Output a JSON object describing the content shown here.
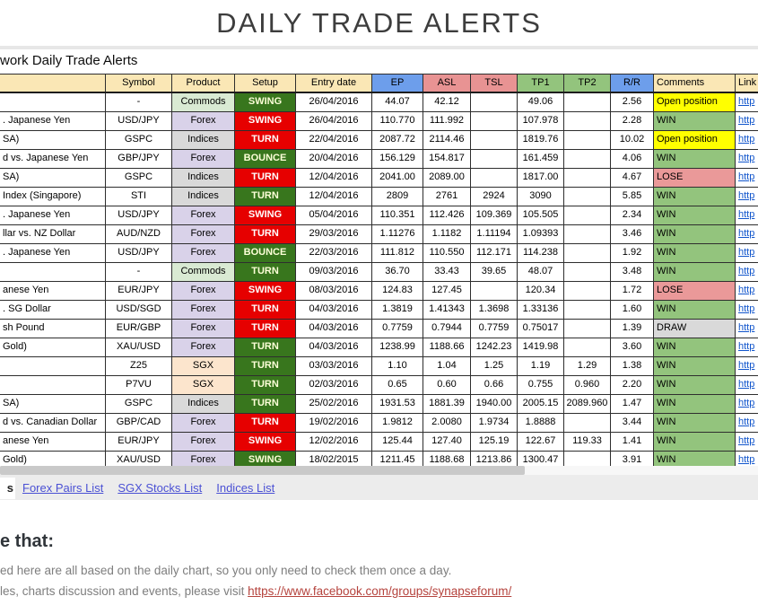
{
  "page": {
    "title": "DAILY TRADE ALERTS",
    "sheet_caption": "work Daily Trade Alerts"
  },
  "table": {
    "headers": {
      "name": "",
      "symbol": "Symbol",
      "product": "Product",
      "setup": "Setup",
      "entry": "Entry date",
      "ep": "EP",
      "asl": "ASL",
      "tsl": "TSL",
      "tp1": "TP1",
      "tp2": "TP2",
      "rr": "R/R",
      "comments": "Comments",
      "link": "Link"
    },
    "rows": [
      {
        "name": "",
        "symbol": "-",
        "product": "Commods",
        "setup": "SWING",
        "setup_color": "green",
        "entry": "26/04/2016",
        "ep": "44.07",
        "asl": "42.12",
        "tsl": "",
        "tp1": "49.06",
        "tp2": "",
        "rr": "2.56",
        "comment": "Open position",
        "link": "http"
      },
      {
        "name": ". Japanese Yen",
        "symbol": "USD/JPY",
        "product": "Forex",
        "setup": "SWING",
        "setup_color": "red",
        "entry": "26/04/2016",
        "ep": "110.770",
        "asl": "111.992",
        "tsl": "",
        "tp1": "107.978",
        "tp2": "",
        "rr": "2.28",
        "comment": "WIN",
        "link": "http"
      },
      {
        "name": "SA)",
        "symbol": "GSPC",
        "product": "Indices",
        "setup": "TURN",
        "setup_color": "red",
        "entry": "22/04/2016",
        "ep": "2087.72",
        "asl": "2114.46",
        "tsl": "",
        "tp1": "1819.76",
        "tp2": "",
        "rr": "10.02",
        "comment": "Open position",
        "link": "http"
      },
      {
        "name": "d vs. Japanese Yen",
        "symbol": "GBP/JPY",
        "product": "Forex",
        "setup": "BOUNCE",
        "setup_color": "green",
        "entry": "20/04/2016",
        "ep": "156.129",
        "asl": "154.817",
        "tsl": "",
        "tp1": "161.459",
        "tp2": "",
        "rr": "4.06",
        "comment": "WIN",
        "link": "http"
      },
      {
        "name": "SA)",
        "symbol": "GSPC",
        "product": "Indices",
        "setup": "TURN",
        "setup_color": "red",
        "entry": "12/04/2016",
        "ep": "2041.00",
        "asl": "2089.00",
        "tsl": "",
        "tp1": "1817.00",
        "tp2": "",
        "rr": "4.67",
        "comment": "LOSE",
        "link": "http"
      },
      {
        "name": "Index (Singapore)",
        "symbol": "STI",
        "product": "Indices",
        "setup": "TURN",
        "setup_color": "green",
        "entry": "12/04/2016",
        "ep": "2809",
        "asl": "2761",
        "tsl": "2924",
        "tp1": "3090",
        "tp2": "",
        "rr": "5.85",
        "comment": "WIN",
        "link": "http"
      },
      {
        "name": ". Japanese Yen",
        "symbol": "USD/JPY",
        "product": "Forex",
        "setup": "SWING",
        "setup_color": "red",
        "entry": "05/04/2016",
        "ep": "110.351",
        "asl": "112.426",
        "tsl": "109.369",
        "tp1": "105.505",
        "tp2": "",
        "rr": "2.34",
        "comment": "WIN",
        "link": "http"
      },
      {
        "name": "llar vs. NZ Dollar",
        "symbol": "AUD/NZD",
        "product": "Forex",
        "setup": "TURN",
        "setup_color": "red",
        "entry": "29/03/2016",
        "ep": "1.11276",
        "asl": "1.1182",
        "tsl": "1.11194",
        "tp1": "1.09393",
        "tp2": "",
        "rr": "3.46",
        "comment": "WIN",
        "link": "http"
      },
      {
        "name": ". Japanese Yen",
        "symbol": "USD/JPY",
        "product": "Forex",
        "setup": "BOUNCE",
        "setup_color": "green",
        "entry": "22/03/2016",
        "ep": "111.812",
        "asl": "110.550",
        "tsl": "112.171",
        "tp1": "114.238",
        "tp2": "",
        "rr": "1.92",
        "comment": "WIN",
        "link": "http"
      },
      {
        "name": "",
        "symbol": "-",
        "product": "Commods",
        "setup": "TURN",
        "setup_color": "green",
        "entry": "09/03/2016",
        "ep": "36.70",
        "asl": "33.43",
        "tsl": "39.65",
        "tp1": "48.07",
        "tp2": "",
        "rr": "3.48",
        "comment": "WIN",
        "link": "http"
      },
      {
        "name": "anese Yen",
        "symbol": "EUR/JPY",
        "product": "Forex",
        "setup": "SWING",
        "setup_color": "red",
        "entry": "08/03/2016",
        "ep": "124.83",
        "asl": "127.45",
        "tsl": "",
        "tp1": "120.34",
        "tp2": "",
        "rr": "1.72",
        "comment": "LOSE",
        "link": "http"
      },
      {
        "name": ". SG Dollar",
        "symbol": "USD/SGD",
        "product": "Forex",
        "setup": "TURN",
        "setup_color": "red",
        "entry": "04/03/2016",
        "ep": "1.3819",
        "asl": "1.41343",
        "tsl": "1.3698",
        "tp1": "1.33136",
        "tp2": "",
        "rr": "1.60",
        "comment": "WIN",
        "link": "http"
      },
      {
        "name": "sh Pound",
        "symbol": "EUR/GBP",
        "product": "Forex",
        "setup": "TURN",
        "setup_color": "red",
        "entry": "04/03/2016",
        "ep": "0.7759",
        "asl": "0.7944",
        "tsl": "0.7759",
        "tp1": "0.75017",
        "tp2": "",
        "rr": "1.39",
        "comment": "DRAW",
        "link": "http"
      },
      {
        "name": "Gold)",
        "symbol": "XAU/USD",
        "product": "Forex",
        "setup": "TURN",
        "setup_color": "green",
        "entry": "04/03/2016",
        "ep": "1238.99",
        "asl": "1188.66",
        "tsl": "1242.23",
        "tp1": "1419.98",
        "tp2": "",
        "rr": "3.60",
        "comment": "WIN",
        "link": "http"
      },
      {
        "name": "",
        "symbol": "Z25",
        "product": "SGX",
        "setup": "TURN",
        "setup_color": "green",
        "entry": "03/03/2016",
        "ep": "1.10",
        "asl": "1.04",
        "tsl": "1.25",
        "tp1": "1.19",
        "tp2": "1.29",
        "rr": "1.38",
        "comment": "WIN",
        "link": "http"
      },
      {
        "name": "",
        "symbol": "P7VU",
        "product": "SGX",
        "setup": "TURN",
        "setup_color": "green",
        "entry": "02/03/2016",
        "ep": "0.65",
        "asl": "0.60",
        "tsl": "0.66",
        "tp1": "0.755",
        "tp2": "0.960",
        "rr": "2.20",
        "comment": "WIN",
        "link": "http"
      },
      {
        "name": "SA)",
        "symbol": "GSPC",
        "product": "Indices",
        "setup": "TURN",
        "setup_color": "green",
        "entry": "25/02/2016",
        "ep": "1931.53",
        "asl": "1881.39",
        "tsl": "1940.00",
        "tp1": "2005.15",
        "tp2": "2089.960",
        "rr": "1.47",
        "comment": "WIN",
        "link": "http"
      },
      {
        "name": "d vs. Canadian Dollar",
        "symbol": "GBP/CAD",
        "product": "Forex",
        "setup": "TURN",
        "setup_color": "red",
        "entry": "19/02/2016",
        "ep": "1.9812",
        "asl": "2.0080",
        "tsl": "1.9734",
        "tp1": "1.8888",
        "tp2": "",
        "rr": "3.44",
        "comment": "WIN",
        "link": "http"
      },
      {
        "name": "anese Yen",
        "symbol": "EUR/JPY",
        "product": "Forex",
        "setup": "SWING",
        "setup_color": "red",
        "entry": "12/02/2016",
        "ep": "125.44",
        "asl": "127.40",
        "tsl": "125.19",
        "tp1": "122.67",
        "tp2": "119.33",
        "rr": "1.41",
        "comment": "WIN",
        "link": "http"
      },
      {
        "name": "Gold)",
        "symbol": "XAU/USD",
        "product": "Forex",
        "setup": "SWING",
        "setup_color": "green",
        "entry": "18/02/2015",
        "ep": "1211.45",
        "asl": "1188.68",
        "tsl": "1213.86",
        "tp1": "1300.47",
        "tp2": "",
        "rr": "3.91",
        "comment": "WIN",
        "link": "http"
      }
    ]
  },
  "tabs": {
    "active_partial": "s",
    "items": [
      "Forex Pairs List",
      "SGX Stocks List",
      "Indices List"
    ]
  },
  "notes": {
    "heading": "e that:",
    "line1": "ed here are all based on the daily chart, so you only need to check them once a day.",
    "line2_prefix": "les, charts discussion and events, please visit ",
    "line2_link": "https://www.facebook.com/groups/synapseforum/"
  },
  "colors": {
    "header_blue": "#6d9eeb",
    "header_pink": "#e89393",
    "header_green": "#93c47d",
    "header_cream": "#fae7b5",
    "setup_green": "#38761d",
    "setup_red": "#e60000",
    "product_commods": "#d9ead3",
    "product_forex": "#d9d2e9",
    "product_indices": "#d9d9d9",
    "product_sgx": "#fce5cd",
    "comment_open": "#ffff00",
    "comment_win": "#93c47d",
    "comment_lose": "#ea9999",
    "comment_draw": "#d9d9d9",
    "sheet_link_blue": "#1155cc",
    "tab_link": "#4a50d4",
    "note_link_red": "#b5433d"
  }
}
